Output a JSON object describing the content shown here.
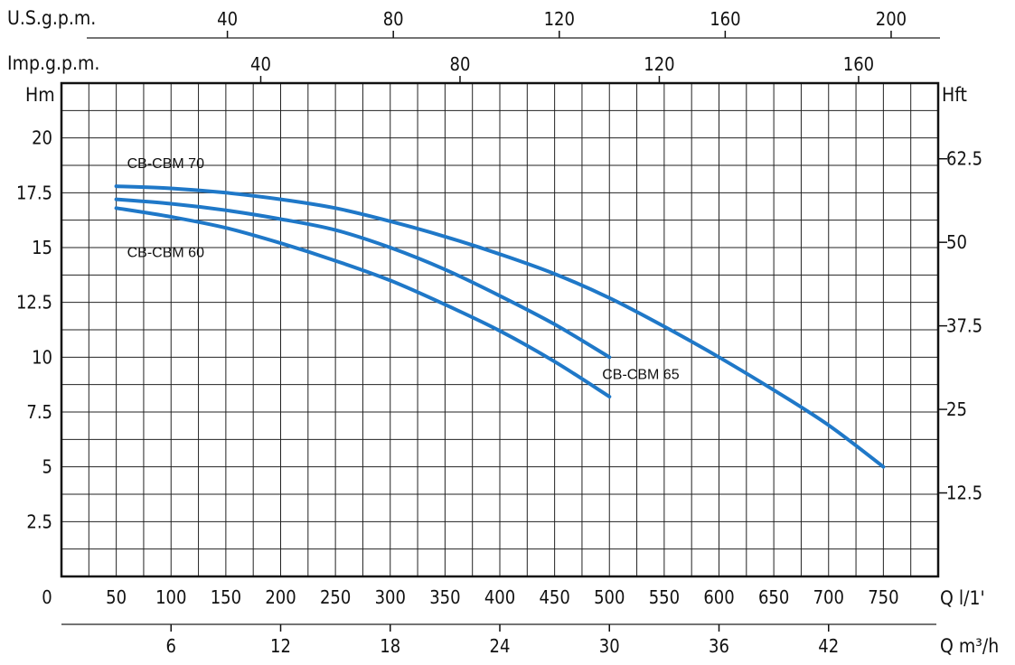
{
  "chart_data": {
    "type": "line",
    "x_unit": "Q l/1'",
    "y_unit": "Hm",
    "y_right_unit": "Hft",
    "top_axis_1_unit": "U.S.g.p.m.",
    "top_axis_2_unit": "Imp.g.p.m.",
    "bottom_axis_2_unit": "Q m³/h",
    "xlim": [
      0,
      800
    ],
    "ylim": [
      0,
      22.5
    ],
    "x_ticks": [
      "0",
      "50",
      "100",
      "150",
      "200",
      "250",
      "300",
      "350",
      "400",
      "450",
      "500",
      "550",
      "600",
      "650",
      "700",
      "750"
    ],
    "y_ticks": [
      "2.5",
      "5",
      "7.5",
      "10",
      "12.5",
      "15",
      "17.5",
      "20"
    ],
    "y_right_ticks": [
      "12.5",
      "25",
      "37.5",
      "50",
      "62.5"
    ],
    "top_axis_1_ticks": [
      "40",
      "80",
      "120",
      "160",
      "200"
    ],
    "top_axis_2_ticks": [
      "40",
      "80",
      "120",
      "160"
    ],
    "bottom_axis_2_ticks": [
      "6",
      "12",
      "18",
      "24",
      "30",
      "36",
      "42"
    ],
    "grid": true,
    "line_color": "#1f78c8",
    "series": [
      {
        "name": "CB-CBM 70",
        "label_at": "top-left",
        "x": [
          50,
          100,
          150,
          200,
          250,
          300,
          350,
          400,
          450,
          500,
          550,
          600,
          650,
          700,
          750
        ],
        "y": [
          17.8,
          17.7,
          17.5,
          17.2,
          16.8,
          16.2,
          15.5,
          14.7,
          13.8,
          12.7,
          11.4,
          10.0,
          8.5,
          6.9,
          5.0
        ]
      },
      {
        "name": "CB-CBM 65",
        "label_at": "end",
        "x": [
          50,
          100,
          150,
          200,
          250,
          300,
          350,
          400,
          450,
          500
        ],
        "y": [
          17.2,
          17.0,
          16.7,
          16.3,
          15.8,
          15.0,
          14.0,
          12.8,
          11.5,
          10.0
        ]
      },
      {
        "name": "CB-CBM 60",
        "label_at": "bottom-left",
        "x": [
          50,
          100,
          150,
          200,
          250,
          300,
          350,
          400,
          450,
          500
        ],
        "y": [
          16.8,
          16.4,
          15.9,
          15.2,
          14.4,
          13.5,
          12.4,
          11.2,
          9.8,
          8.2
        ]
      }
    ]
  }
}
